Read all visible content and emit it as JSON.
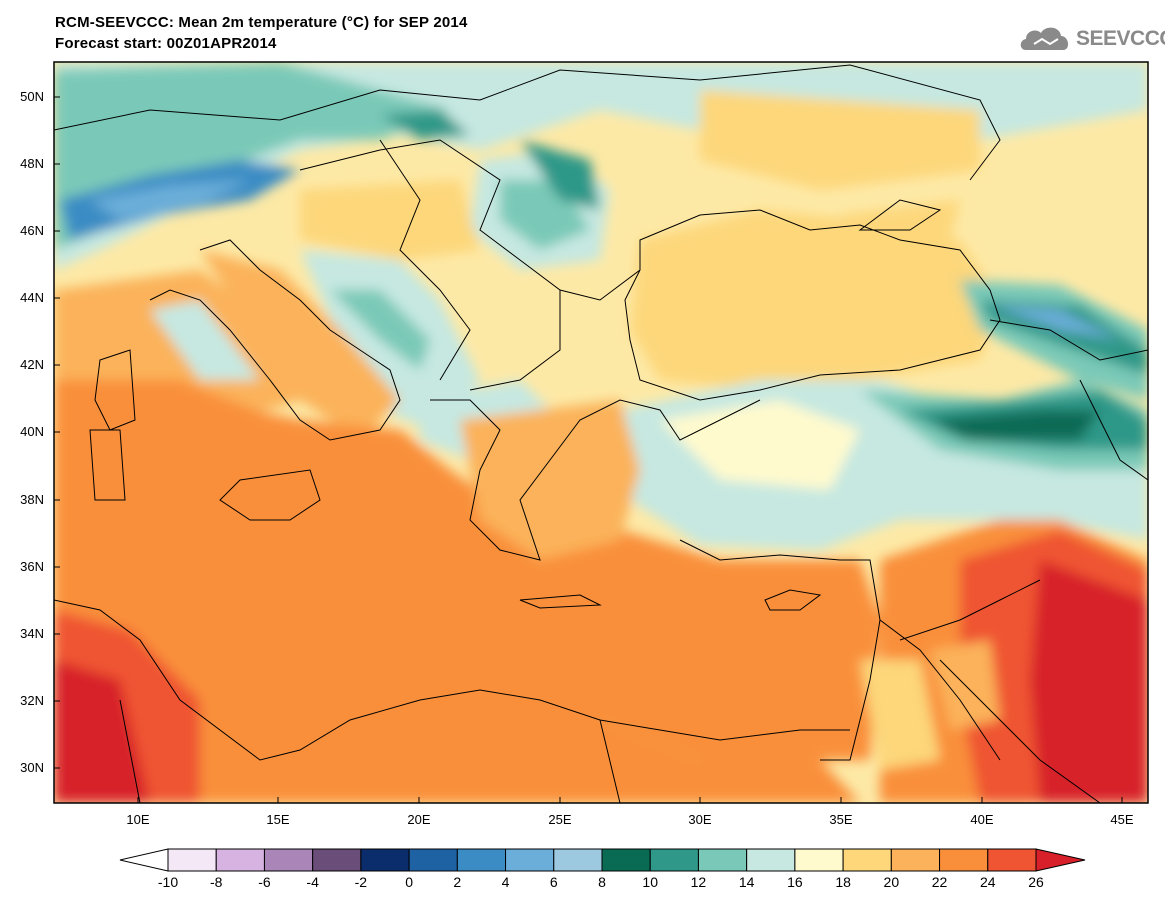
{
  "title": {
    "line1": "RCM-SEEVCCC: Mean 2m temperature (°C) for SEP 2014",
    "line2": "Forecast start: 00Z01APR2014"
  },
  "logo": {
    "text": "SEEVCCC",
    "icon": "cloud-logo-icon"
  },
  "map": {
    "variable": "Mean 2m temperature",
    "units": "°C",
    "lon_range": [
      7,
      46
    ],
    "lat_range": [
      29,
      51
    ],
    "lat_ticks": [
      "30N",
      "32N",
      "34N",
      "36N",
      "38N",
      "40N",
      "42N",
      "44N",
      "46N",
      "48N",
      "50N"
    ],
    "lon_ticks": [
      "10E",
      "15E",
      "20E",
      "25E",
      "30E",
      "35E",
      "40E",
      "45E"
    ]
  },
  "colorbar": {
    "labels": [
      "-10",
      "-8",
      "-6",
      "-4",
      "-2",
      "0",
      "2",
      "4",
      "6",
      "8",
      "10",
      "12",
      "14",
      "16",
      "18",
      "20",
      "22",
      "24",
      "26"
    ],
    "colors": [
      "#f4e8f7",
      "#d6b3e0",
      "#a985b8",
      "#6a4d78",
      "#0b2d6b",
      "#1f62a3",
      "#3b8cc4",
      "#6aaed9",
      "#9cc9e0",
      "#0a6b55",
      "#2f9888",
      "#7ac9b8",
      "#c6e8e1",
      "#fffacd",
      "#fdd77a",
      "#fbb25a",
      "#f98f3b",
      "#ef5532"
    ],
    "under_color": "#ffffff",
    "over_color": "#d7202a"
  }
}
